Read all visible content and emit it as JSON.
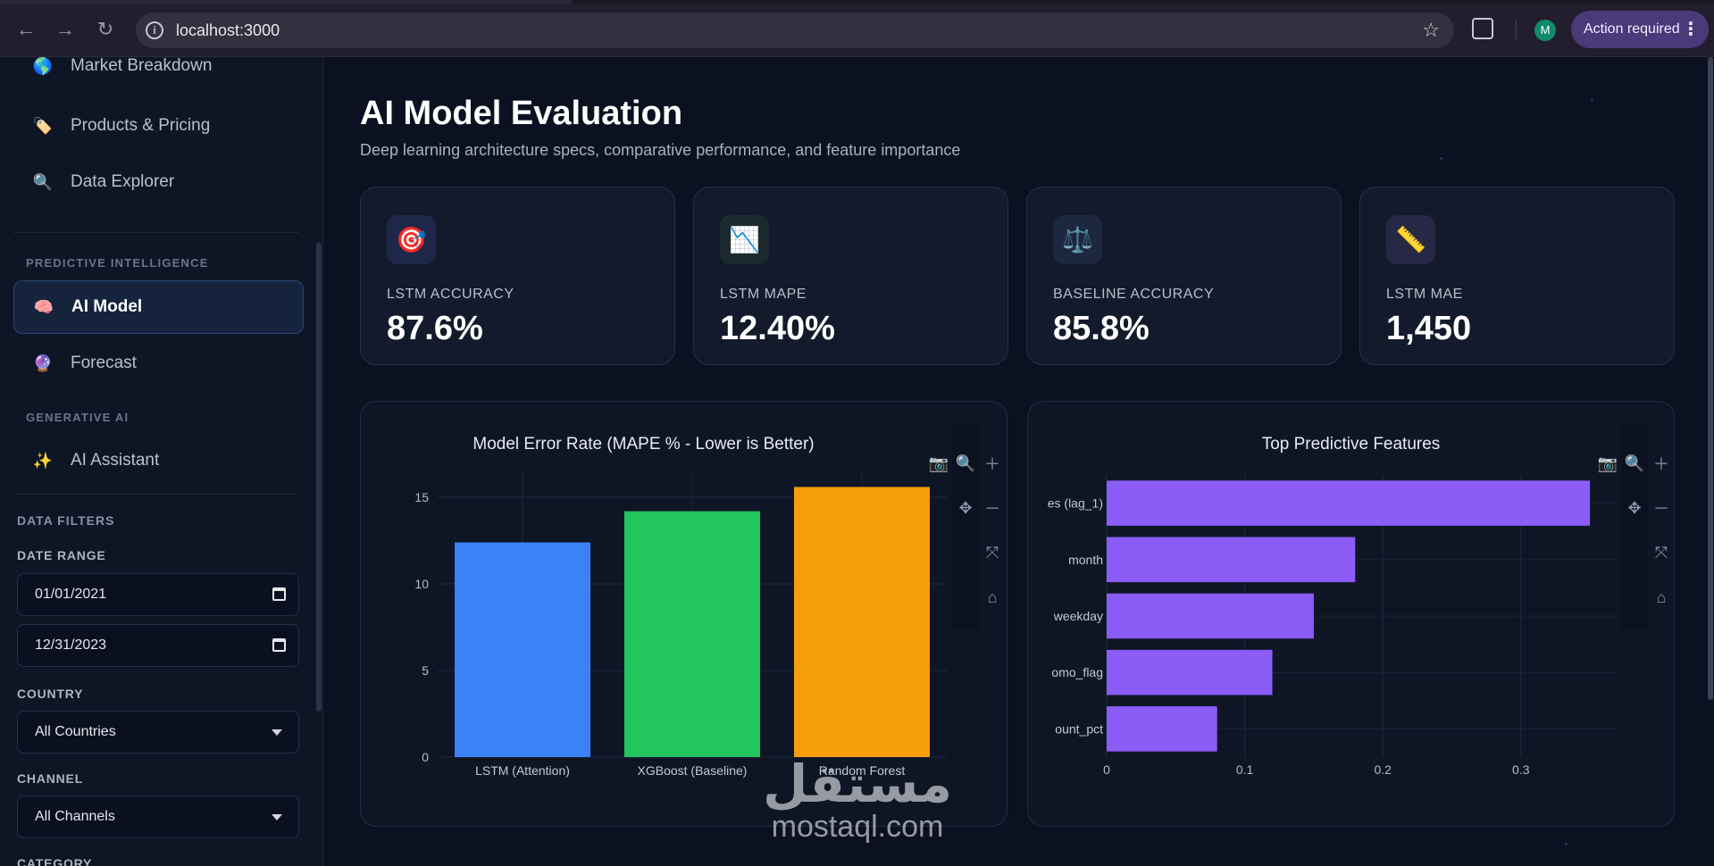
{
  "browser": {
    "url": "localhost:3000",
    "avatar_letter": "M",
    "action_label": "Action required"
  },
  "sidebar": {
    "nav_top": [
      {
        "label": "Market Breakdown",
        "icon": "🌎"
      },
      {
        "label": "Products & Pricing",
        "icon": "🏷️"
      },
      {
        "label": "Data Explorer",
        "icon": "🔍"
      }
    ],
    "section_predictive": "PREDICTIVE INTELLIGENCE",
    "nav_predictive": [
      {
        "label": "AI Model",
        "icon": "🧠",
        "active": true
      },
      {
        "label": "Forecast",
        "icon": "🔮"
      }
    ],
    "section_generative": "GENERATIVE AI",
    "nav_generative": [
      {
        "label": "AI Assistant",
        "icon": "✨"
      }
    ],
    "filters_title": "DATA FILTERS",
    "date_range_label": "DATE RANGE",
    "date_start": "01/01/2021",
    "date_end": "12/31/2023",
    "country_label": "COUNTRY",
    "country_value": "All Countries",
    "channel_label": "CHANNEL",
    "channel_value": "All Channels",
    "category_label": "CATEGORY"
  },
  "main": {
    "title": "AI Model Evaluation",
    "subtitle": "Deep learning architecture specs, comparative performance, and feature importance",
    "kpis": [
      {
        "label": "LSTM ACCURACY",
        "value": "87.6%",
        "icon": "🎯",
        "badge": "#1e2748"
      },
      {
        "label": "LSTM MAPE",
        "value": "12.40%",
        "icon": "📉",
        "badge": "#1c2a30"
      },
      {
        "label": "BASELINE ACCURACY",
        "value": "85.8%",
        "icon": "⚖️",
        "badge": "#1e2740"
      },
      {
        "label": "LSTM MAE",
        "value": "1,450",
        "icon": "📏",
        "badge": "#272845"
      }
    ]
  },
  "chart_data": [
    {
      "type": "bar",
      "title": "Model Error Rate (MAPE % - Lower is Better)",
      "categories": [
        "LSTM (Attention)",
        "XGBoost (Baseline)",
        "Random Forest"
      ],
      "values": [
        12.4,
        14.2,
        15.6
      ],
      "colors": [
        "#3b82f6",
        "#22c55e",
        "#f59e0b"
      ],
      "yticks": [
        0,
        5,
        10,
        15
      ],
      "ylim": [
        0,
        16.5
      ],
      "grid": true
    },
    {
      "type": "bar",
      "orientation": "horizontal",
      "title": "Top Predictive Features",
      "categories": [
        "es (lag_1)",
        "month",
        "weekday",
        "omo_flag",
        "ount_pct"
      ],
      "values": [
        0.35,
        0.18,
        0.15,
        0.12,
        0.08
      ],
      "color": "#8b5cf6",
      "xticks": [
        0,
        0.1,
        0.2,
        0.3
      ],
      "xlim": [
        0,
        0.37
      ],
      "grid": true
    }
  ],
  "watermark": {
    "arabic": "مستقل",
    "latin": "mostaql.com"
  }
}
